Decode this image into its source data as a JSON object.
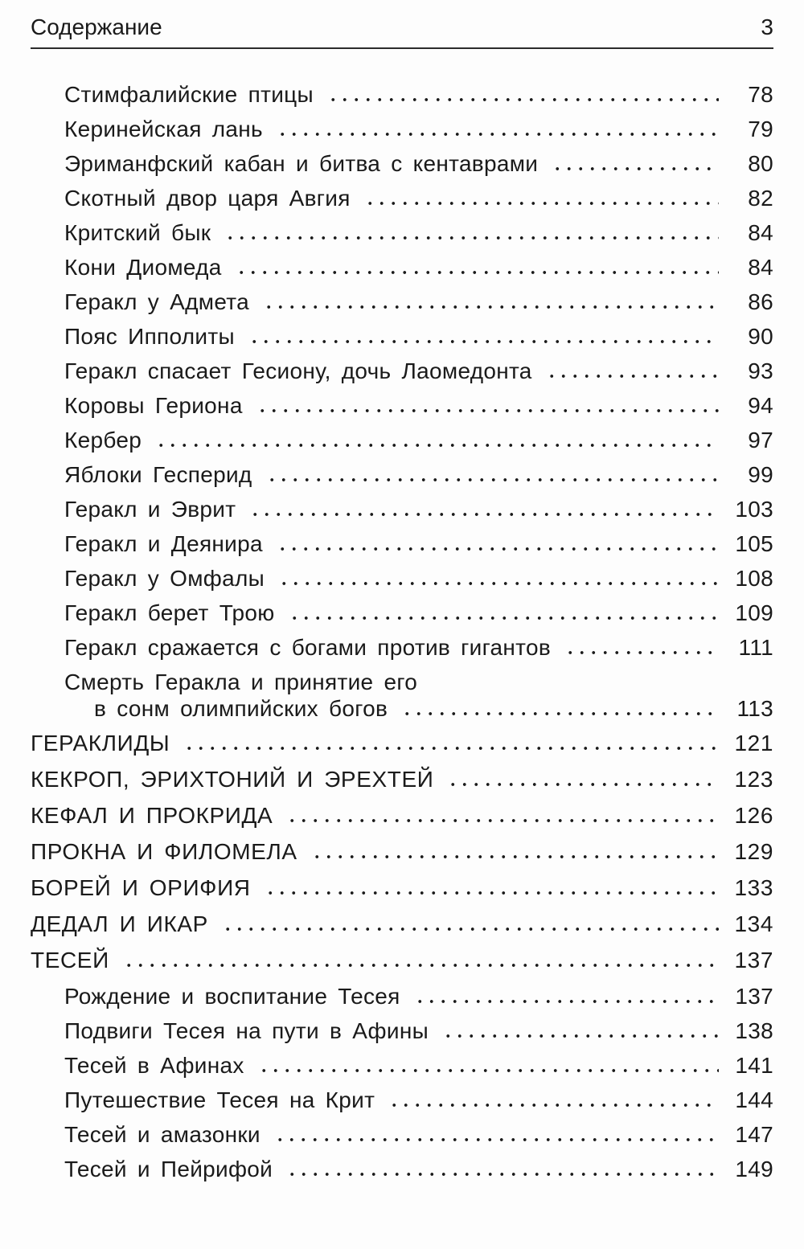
{
  "header": {
    "title": "Содержание",
    "page_number": "3"
  },
  "toc": {
    "entries": [
      {
        "label": "Стимфалийские птицы",
        "page": "78"
      },
      {
        "label": "Керинейская лань",
        "page": "79"
      },
      {
        "label": "Эриманфский кабан и битва с кентаврами",
        "page": "80"
      },
      {
        "label": "Скотный двор царя Авгия",
        "page": "82"
      },
      {
        "label": "Критский бык",
        "page": "84"
      },
      {
        "label": "Кони Диомеда",
        "page": "84"
      },
      {
        "label": "Геракл у Адмета",
        "page": "86"
      },
      {
        "label": "Пояс Ипполиты",
        "page": "90"
      },
      {
        "label": "Геракл спасает Гесиону, дочь Лаомедонта",
        "page": "93"
      },
      {
        "label": "Коровы Гериона",
        "page": "94"
      },
      {
        "label": "Кербер",
        "page": "97"
      },
      {
        "label": "Яблоки Гесперид",
        "page": "99"
      },
      {
        "label": "Геракл и Эврит",
        "page": "103"
      },
      {
        "label": "Геракл и Деянира",
        "page": "105"
      },
      {
        "label": "Геракл у Омфалы",
        "page": "108"
      },
      {
        "label": "Геракл берет Трою",
        "page": "109"
      },
      {
        "label": "Геракл сражается с богами против гигантов",
        "page": "111"
      },
      {
        "label": "Смерть Геракла и принятие его",
        "label2": "в сонм олимпийских богов",
        "page": "113"
      },
      {
        "label": "ГЕРАКЛИДЫ",
        "page": "121"
      },
      {
        "label": "КЕКРОП, ЭРИХТОНИЙ И ЭРЕХТЕЙ",
        "page": "123"
      },
      {
        "label": "КЕФАЛ И ПРОКРИДА",
        "page": "126"
      },
      {
        "label": "ПРОКНА И ФИЛОМЕЛА",
        "page": "129"
      },
      {
        "label": "БОРЕЙ И ОРИФИЯ",
        "page": "133"
      },
      {
        "label": "ДЕДАЛ И ИКАР",
        "page": "134"
      },
      {
        "label": "ТЕСЕЙ",
        "page": "137"
      },
      {
        "label": "Рождение и воспитание Тесея",
        "page": "137"
      },
      {
        "label": "Подвиги Тесея на пути в Афины",
        "page": "138"
      },
      {
        "label": "Тесей в Афинах",
        "page": "141"
      },
      {
        "label": "Путешествие Тесея на Крит",
        "page": "144"
      },
      {
        "label": "Тесей и амазонки",
        "page": "147"
      },
      {
        "label": "Тесей и Пейрифой",
        "page": "149"
      }
    ]
  }
}
